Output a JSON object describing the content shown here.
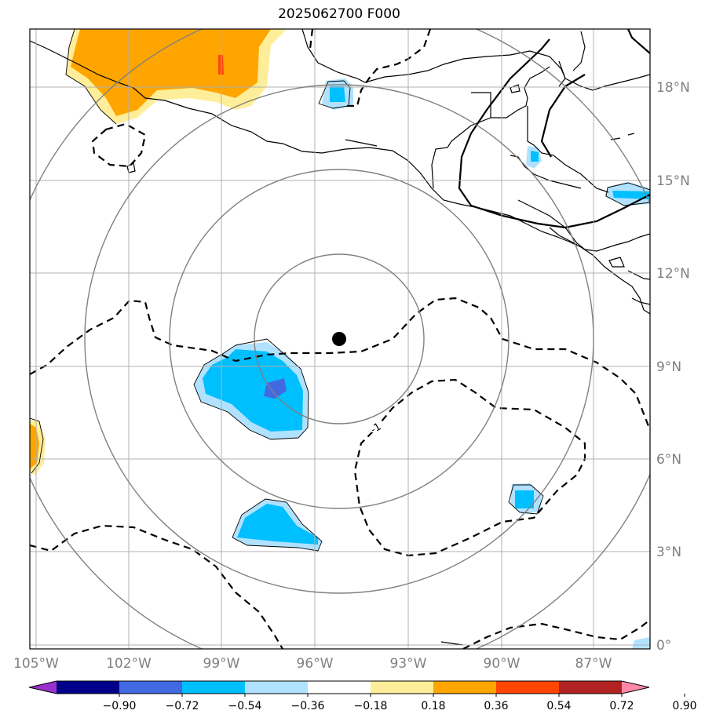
{
  "title": "2025062700 F000",
  "lon_labels": [
    "105°W",
    "102°W",
    "99°W",
    "96°W",
    "93°W",
    "90°W",
    "87°W"
  ],
  "lat_labels": [
    "0°",
    "3°N",
    "6°N",
    "9°N",
    "12°N",
    "15°N",
    "18°N"
  ],
  "contour_label": "-1",
  "colorbar": {
    "ticks": [
      "−0.90",
      "−0.72",
      "−0.54",
      "−0.36",
      "−0.18",
      "0.18",
      "0.36",
      "0.54",
      "0.72",
      "0.90"
    ],
    "colors": [
      "#9932cc",
      "#00008b",
      "#4169e1",
      "#00bfff",
      "#b0e2ff",
      "#ffffff",
      "#ffee99",
      "#ffa500",
      "#ff4500",
      "#b22222",
      "#ff88aa"
    ]
  },
  "center_marker": "storm-center",
  "colors": {
    "pos_light": "#ffee99",
    "pos_mid": "#ffa500",
    "pos_strong": "#ff4500",
    "neg_light": "#b0e2ff",
    "neg_mid": "#00bfff",
    "neg_strong": "#4169e1",
    "grid": "#b0b0b0",
    "range_rings": "#808080"
  }
}
